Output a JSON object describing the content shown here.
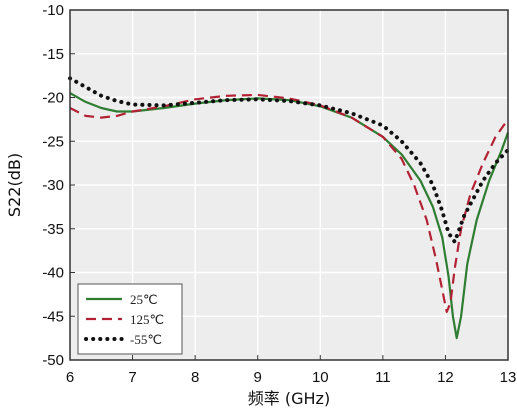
{
  "chart_data": {
    "type": "line",
    "title": "",
    "xlabel": "频率 (GHz)",
    "ylabel": "S22(dB)",
    "xlim": [
      6,
      13
    ],
    "ylim": [
      -50,
      -10
    ],
    "xticks": [
      "6",
      "7",
      "8",
      "9",
      "10",
      "11",
      "12",
      "13"
    ],
    "yticks": [
      "-10",
      "-15",
      "-20",
      "-25",
      "-30",
      "-35",
      "-40",
      "-45",
      "-50"
    ],
    "grid": true,
    "legend": "bottom-left",
    "series": [
      {
        "name": "25℃",
        "color": "#2e7d32",
        "style": "solid",
        "x": [
          6,
          6.25,
          6.5,
          6.75,
          7,
          7.5,
          8,
          8.5,
          9,
          9.5,
          10,
          10.5,
          11,
          11.3,
          11.6,
          11.8,
          11.95,
          12.05,
          12.12,
          12.18,
          12.25,
          12.35,
          12.5,
          12.7,
          12.9,
          13
        ],
        "y": [
          -19.5,
          -20.5,
          -21.2,
          -21.6,
          -21.6,
          -21.2,
          -20.7,
          -20.3,
          -20.1,
          -20.3,
          -21,
          -22.3,
          -24.5,
          -26.5,
          -29.5,
          -32.5,
          -36,
          -40.5,
          -45,
          -47.5,
          -45,
          -39,
          -34,
          -29.5,
          -26,
          -24
        ]
      },
      {
        "name": "125℃",
        "color": "#b22234",
        "style": "dashed",
        "x": [
          6,
          6.25,
          6.5,
          6.75,
          7,
          7.5,
          8,
          8.5,
          9,
          9.5,
          10,
          10.5,
          11,
          11.3,
          11.5,
          11.7,
          11.85,
          11.95,
          12.02,
          12.08,
          12.15,
          12.25,
          12.4,
          12.6,
          12.8,
          13
        ],
        "y": [
          -21.2,
          -22.1,
          -22.3,
          -22.1,
          -21.6,
          -21,
          -20.2,
          -19.8,
          -19.7,
          -20.1,
          -20.9,
          -22.3,
          -24.5,
          -27,
          -30,
          -34,
          -38.5,
          -42,
          -44.5,
          -43.5,
          -39.5,
          -35,
          -31,
          -27.5,
          -24.5,
          -22.5
        ]
      },
      {
        "name": "-55℃",
        "color": "#111111",
        "style": "dotted",
        "x": [
          6,
          6.25,
          6.5,
          6.75,
          7,
          7.5,
          8,
          8.5,
          9,
          9.5,
          10,
          10.5,
          11,
          11.3,
          11.6,
          11.8,
          11.95,
          12.05,
          12.15,
          12.2,
          12.3,
          12.45,
          12.6,
          12.8,
          13
        ],
        "y": [
          -17.8,
          -18.8,
          -19.8,
          -20.4,
          -20.8,
          -20.9,
          -20.6,
          -20.3,
          -20.2,
          -20.4,
          -20.9,
          -21.8,
          -23.2,
          -25,
          -27.5,
          -30,
          -33,
          -35.5,
          -36.5,
          -35.5,
          -33.5,
          -31.5,
          -29.5,
          -27.5,
          -26
        ]
      }
    ]
  }
}
